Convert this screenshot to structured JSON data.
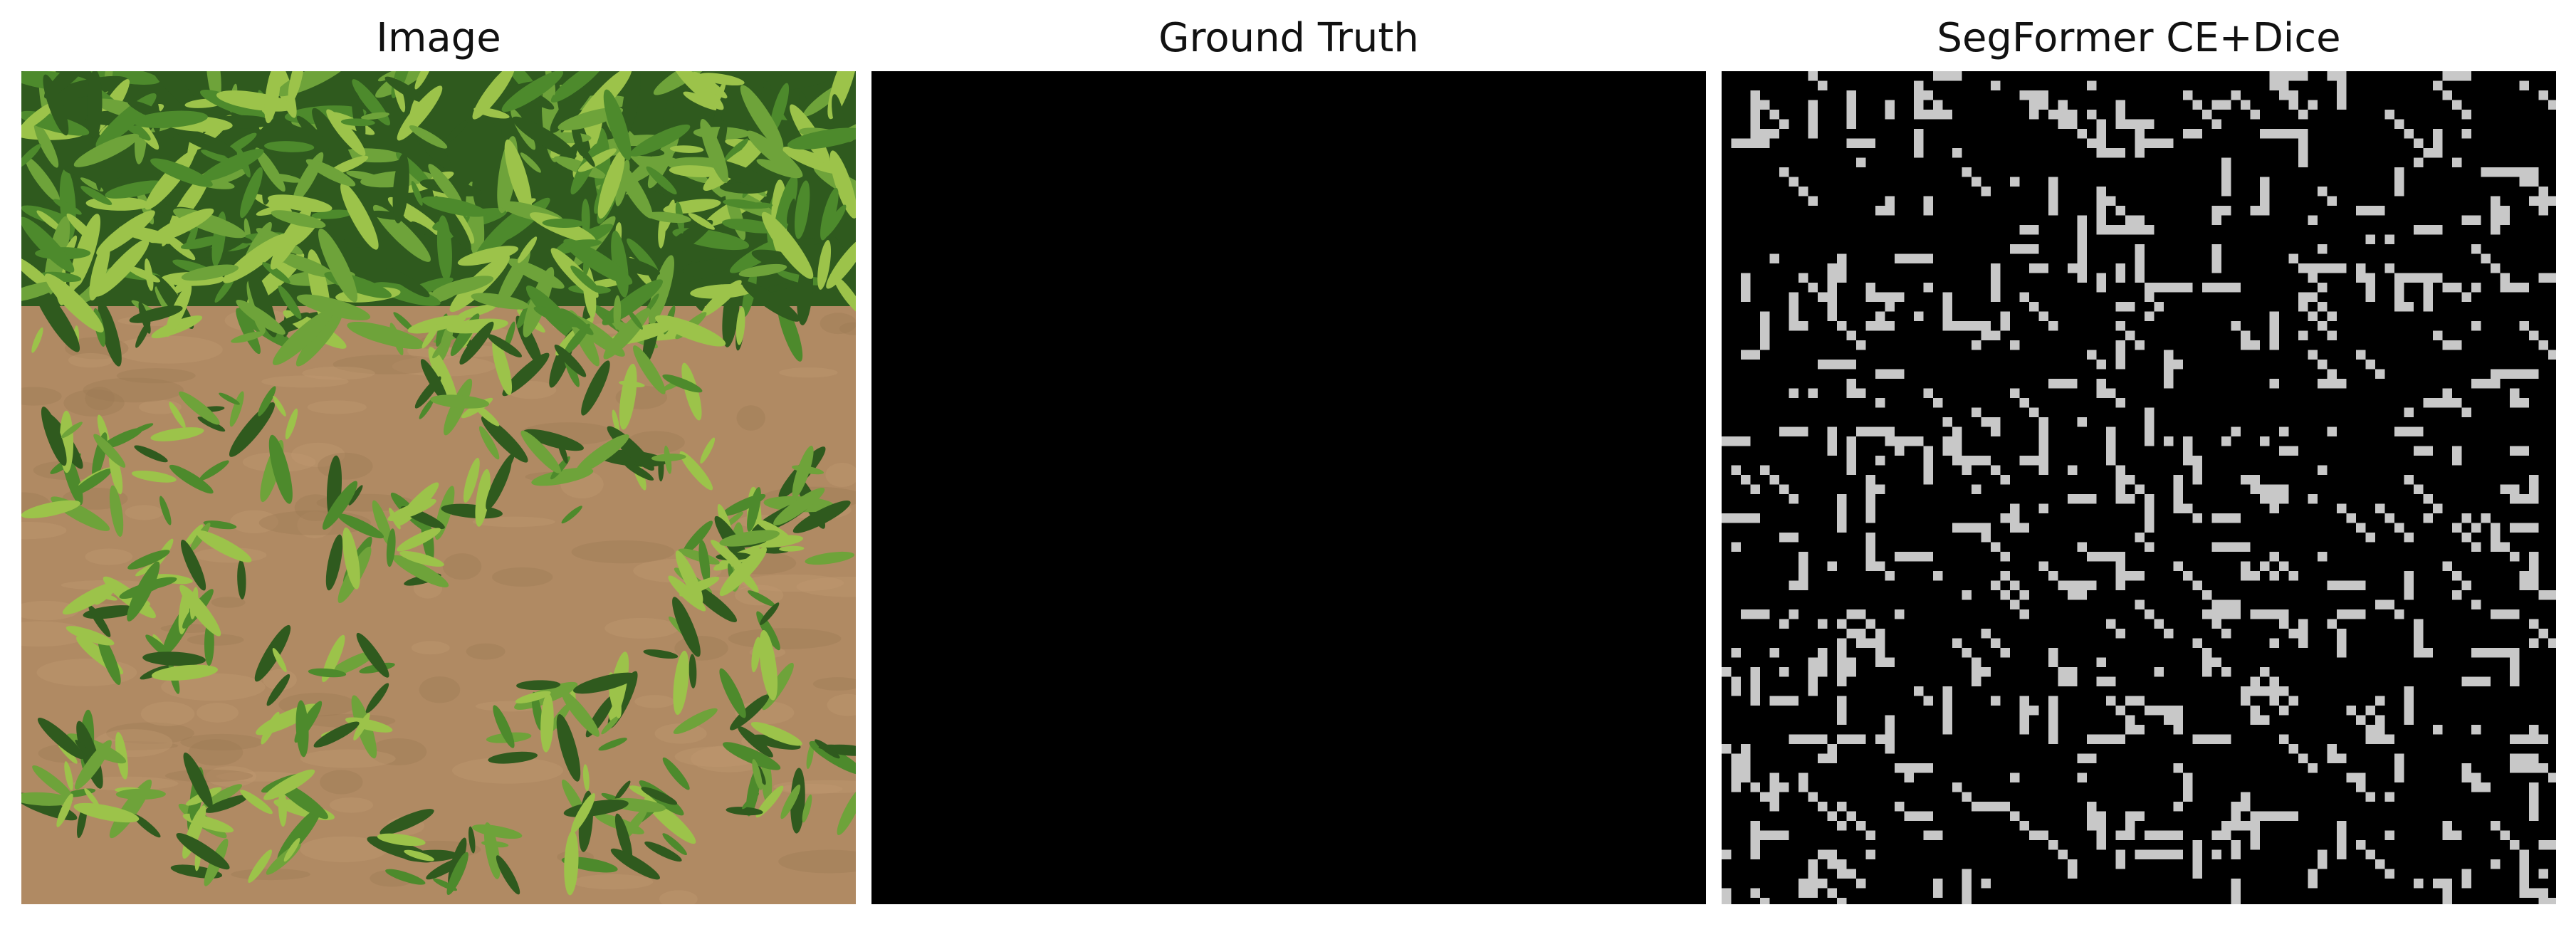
{
  "panels": [
    {
      "title": "Image"
    },
    {
      "title": "Ground Truth"
    },
    {
      "title": "SegFormer CE+Dice"
    }
  ],
  "colors": {
    "soil": "#b08a63",
    "leaf_dark": "#2f5a1e",
    "leaf_mid": "#4d8a2c",
    "leaf_light": "#9cc34a",
    "mask_bg": "#000000",
    "mask_fg": "#c8c8c8"
  }
}
